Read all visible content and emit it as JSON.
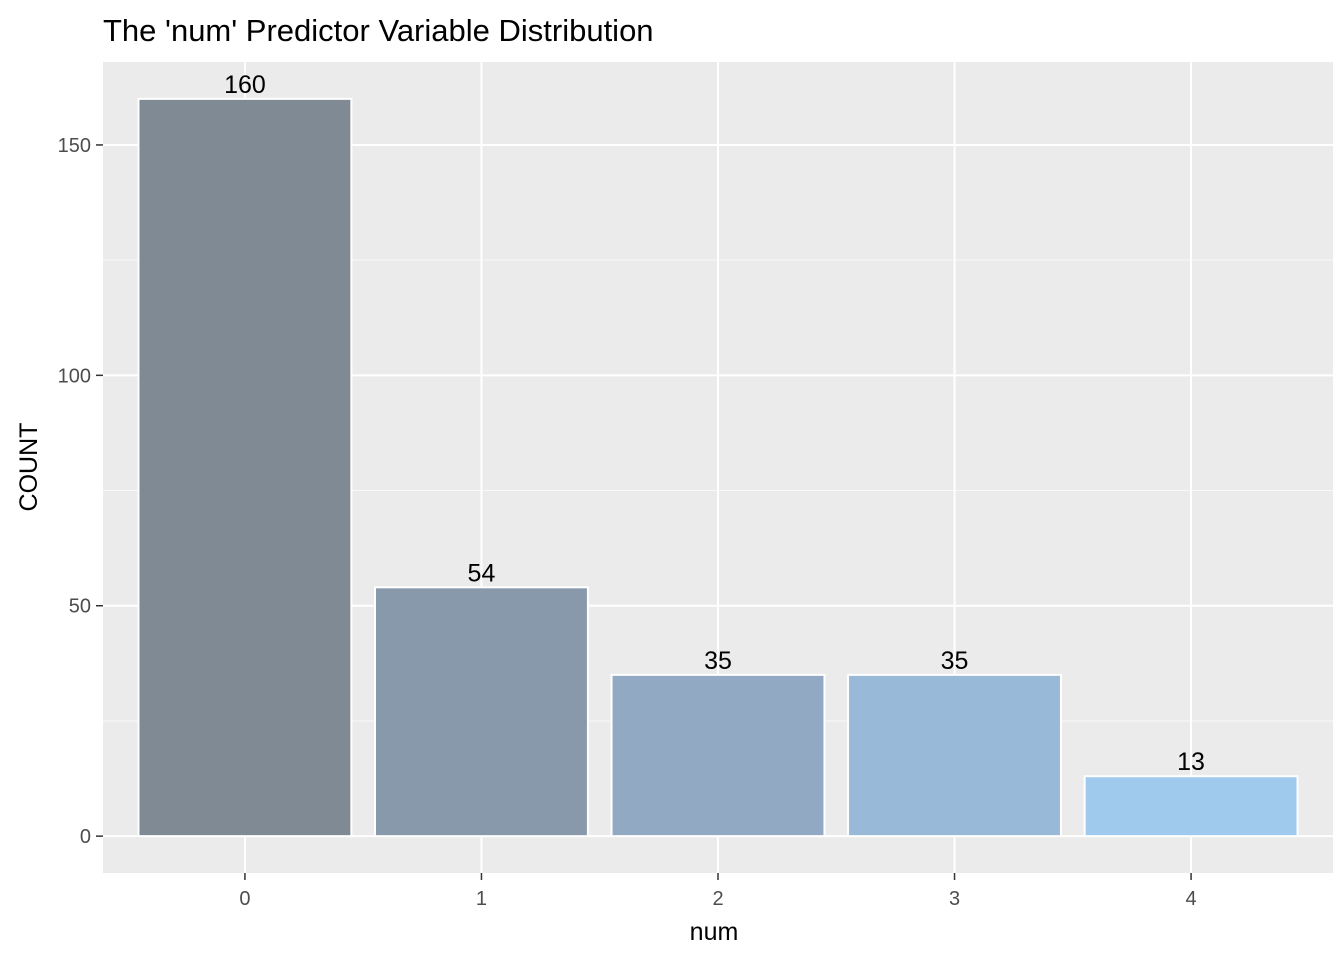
{
  "chart_data": {
    "type": "bar",
    "title": "The 'num' Predictor Variable Distribution",
    "xlabel": "num",
    "ylabel": "COUNT",
    "categories": [
      "0",
      "1",
      "2",
      "3",
      "4"
    ],
    "values": [
      160,
      54,
      35,
      35,
      13
    ],
    "data_labels": [
      "160",
      "54",
      "35",
      "35",
      "13"
    ],
    "ylim": [
      -8,
      168
    ],
    "y_ticks": [
      0,
      50,
      100,
      150
    ],
    "y_tick_labels": [
      "0",
      "50",
      "100",
      "150"
    ],
    "grid": true,
    "legend": "none",
    "colors": {
      "panel_background": "#EBEBEB",
      "grid_major": "#FFFFFF",
      "grid_minor": "#F5F5F5",
      "bar_fills": [
        "#7F8A94",
        "#8799AB",
        "#91A9C2",
        "#98BAD8",
        "#9FCAEE"
      ],
      "bar_outline": "#FFFFFF",
      "tick_text": "#4D4D4D",
      "tick_mark": "#333333"
    }
  }
}
